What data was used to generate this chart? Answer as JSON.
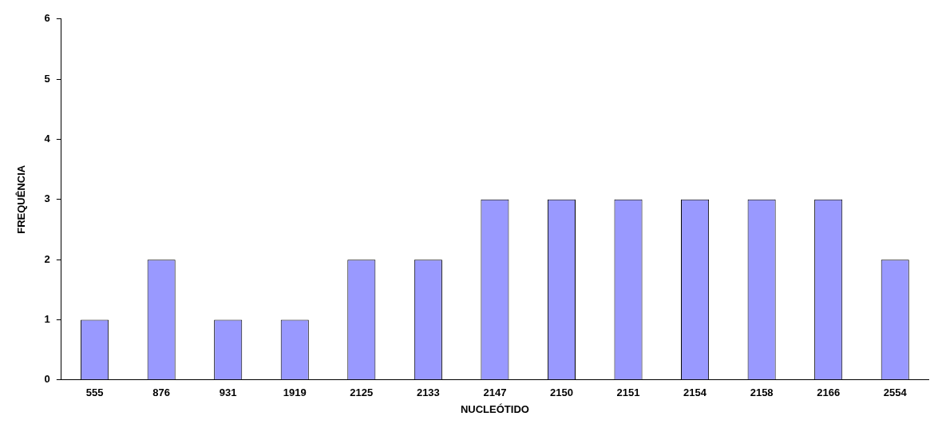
{
  "chart_data": {
    "type": "bar",
    "xlabel": "NUCLEÓTIDO",
    "ylabel": "FREQUÊNCIA",
    "categories": [
      "555",
      "876",
      "931",
      "1919",
      "2125",
      "2133",
      "2147",
      "2150",
      "2151",
      "2154",
      "2158",
      "2166",
      "2554"
    ],
    "values": [
      1,
      2,
      1,
      1,
      2,
      2,
      3,
      3,
      3,
      3,
      3,
      3,
      2
    ],
    "color": "#9999ff",
    "ylim": [
      0,
      6
    ],
    "yticks": [
      0,
      1,
      2,
      3,
      4,
      5,
      6
    ]
  }
}
